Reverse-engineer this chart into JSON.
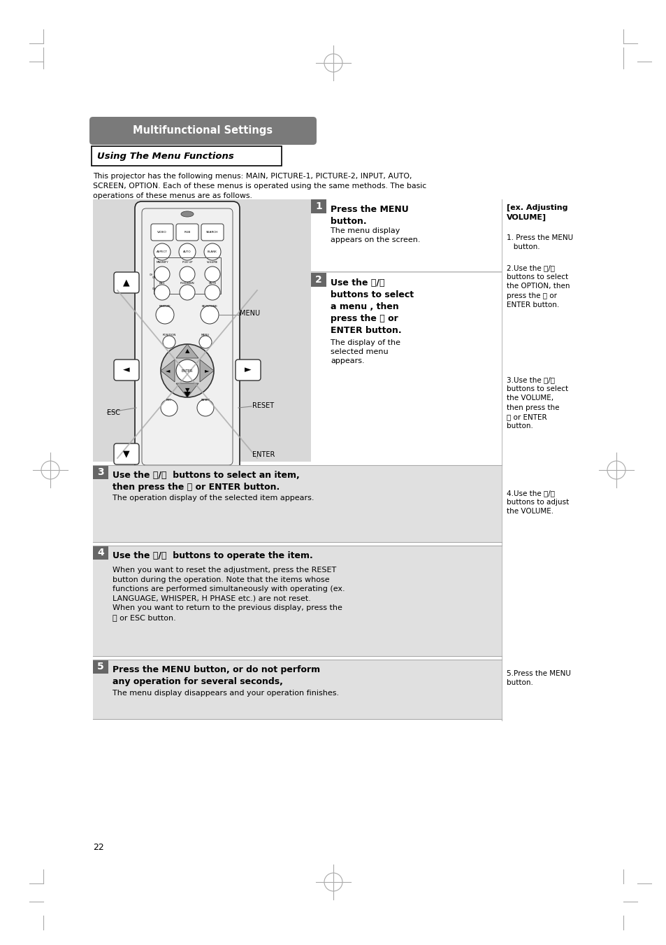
{
  "bg_color": "#ffffff",
  "page_number": "22",
  "title": "Multifunctional Settings",
  "title_bg": "#7a7a7a",
  "title_text_color": "#ffffff",
  "subtitle": "Using The Menu Functions",
  "intro_text": "This projector has the following menus: MAIN, PICTURE-1, PICTURE-2, INPUT, AUTO,\nSCREEN, OPTION. Each of these menus is operated using the same methods. The basic\noperations of these menus are as follows.",
  "step1_bold": "Press the MENU\nbutton.",
  "step1_body": "The menu display\nappears on the screen.",
  "step2_bold": "Use the ⒲/⒳\nbuttons to select\na menu , then\npress the Ⓐ or\nENTER button.",
  "step2_body": "The display of the\nselected menu\nappears.",
  "step3_bold": "Use the ⒲/⒳  buttons to select an item,\nthen press the Ⓐ or ENTER button.",
  "step3_body": "The operation display of the selected item appears.",
  "step4_bold": "Use the ⒲/⒳  buttons to operate the item.",
  "step4_body": "When you want to reset the adjustment, press the RESET\nbutton during the operation. Note that the items whose\nfunctions are performed simultaneously with operating (ex.\nLANGUAGE, WHISPER, H PHASE etc.) are not reset.\nWhen you want to return to the previous display, press the\n⒴ or ESC button.",
  "step5_bold": "Press the MENU button, or do not perform\nany operation for several seconds,",
  "step5_body": "The menu display disappears and your operation finishes.",
  "rp_title": "[ex. Adjusting\nVOLUME]",
  "rp1": "1. Press the MENU\n   button.",
  "rp2": "2.Use the ⒲/⒳\nbuttons to select\nthe OPTION, then\npress the Ⓐ or\nENTER button.",
  "rp3": "3.Use the ⒲/⒳\nbuttons to select\nthe VOLUME,\nthen press the\nⒶ or ENTER\nbutton.",
  "rp4": "4.Use the ⒲/⒳\nbuttons to adjust\nthe VOLUME.",
  "rp5": "5.Press the MENU\nbutton.",
  "mark_color": "#aaaaaa",
  "step_num_bg": "#666666",
  "step_bg": "#e0e0e0",
  "gray_panel_bg": "#d8d8d8",
  "white": "#ffffff",
  "black": "#000000"
}
